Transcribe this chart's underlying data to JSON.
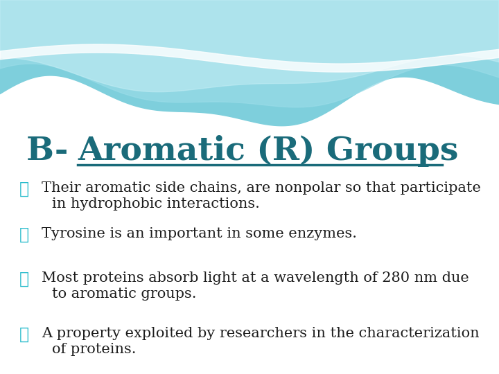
{
  "title_prefix": "B-  ",
  "title_underlined": "Aromatic (R) Groups",
  "title_color": "#1a6b7a",
  "title_fontsize": 34,
  "background_color": "#ffffff",
  "bullet_color": "#2bbccc",
  "text_color": "#1c1c1c",
  "bullets": [
    [
      "Their aromatic side chains, are nonpolar so that participate",
      "in hydrophobic interactions."
    ],
    [
      "Tyrosine is an important in some enzymes."
    ],
    [
      "Most proteins absorb light at a wavelength of 280 nm due",
      "to aromatic groups."
    ],
    [
      "A property exploited by researchers in the characterization",
      "of proteins."
    ]
  ],
  "wave_base_color": "#7ecfdc",
  "wave_mid_color": "#9adce8",
  "wave_light_color": "#c5eef5",
  "bullet_symbol": "♻"
}
